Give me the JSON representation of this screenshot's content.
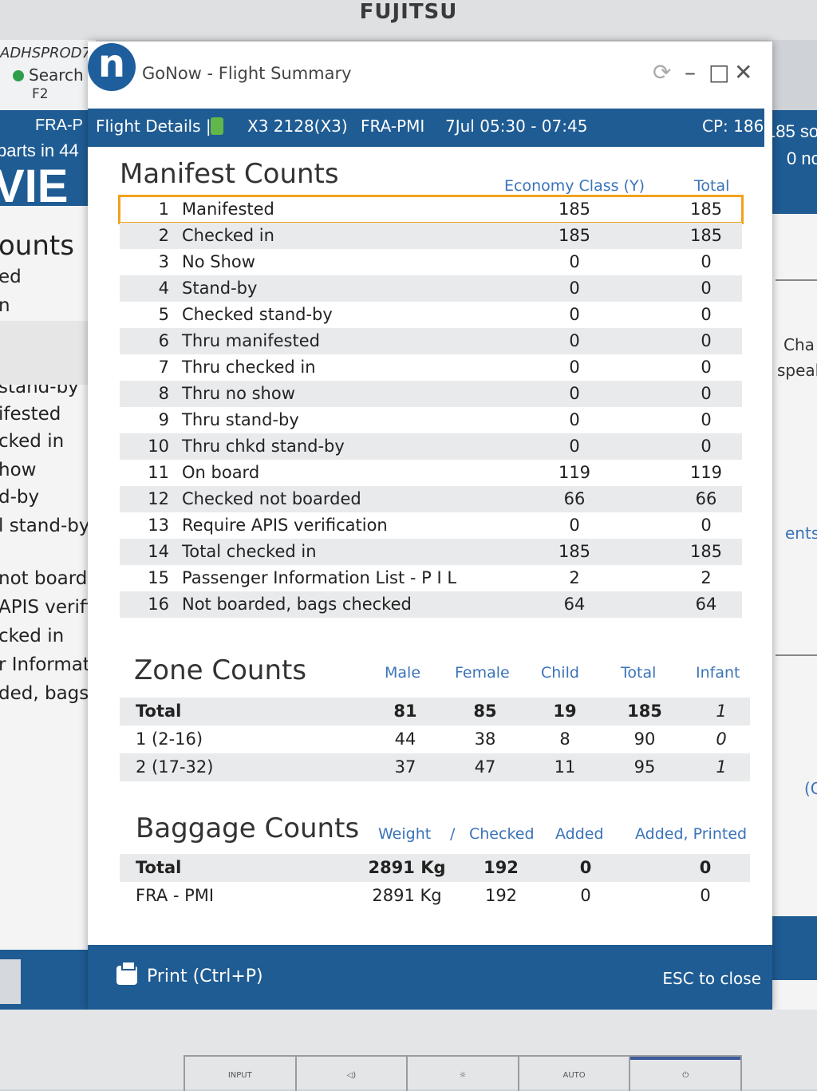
{
  "monitor": {
    "brand": "FUJITSU",
    "buttons": [
      "INPUT",
      "◁)",
      "☼",
      "AUTO",
      "⏻"
    ]
  },
  "background_left": {
    "host": "ADHSPROD7",
    "search": "Search",
    "key": "F2",
    "route": "FRA-P",
    "departs": "parts in 44",
    "big": "VIE",
    "heading": "ounts",
    "items": [
      "ed",
      "n",
      "stand-by",
      "ifested",
      "cked in",
      "how",
      "d-by",
      "l stand-by",
      "not boarde",
      "APIS verific",
      "cked in",
      "r Informat",
      "ded, bags c"
    ]
  },
  "background_right": {
    "line1": "185 so",
    "line2": "0 no",
    "txt1": "Cha",
    "txt2": "speal",
    "txt3": "ents",
    "txt4": "(C"
  },
  "window": {
    "logo": "n",
    "title": "GoNow - Flight Summary",
    "controls": {
      "refresh": "⟳",
      "minimize": "–",
      "maximize": "□",
      "close": "✕"
    }
  },
  "header": {
    "section": "Flight Details |",
    "flight": "X3 2128(X3)",
    "route": "FRA-PMI",
    "time": "7Jul 05:30 - 07:45",
    "cp": "CP: 186"
  },
  "manifest": {
    "title": "Manifest Counts",
    "columns": [
      "Economy Class (Y)",
      "Total"
    ],
    "rows": [
      {
        "n": "1",
        "label": "Manifested",
        "y": "185",
        "total": "185"
      },
      {
        "n": "2",
        "label": "Checked in",
        "y": "185",
        "total": "185"
      },
      {
        "n": "3",
        "label": "No Show",
        "y": "0",
        "total": "0"
      },
      {
        "n": "4",
        "label": "Stand-by",
        "y": "0",
        "total": "0"
      },
      {
        "n": "5",
        "label": "Checked stand-by",
        "y": "0",
        "total": "0"
      },
      {
        "n": "6",
        "label": "Thru manifested",
        "y": "0",
        "total": "0"
      },
      {
        "n": "7",
        "label": "Thru checked in",
        "y": "0",
        "total": "0"
      },
      {
        "n": "8",
        "label": "Thru no show",
        "y": "0",
        "total": "0"
      },
      {
        "n": "9",
        "label": "Thru stand-by",
        "y": "0",
        "total": "0"
      },
      {
        "n": "10",
        "label": "Thru chkd stand-by",
        "y": "0",
        "total": "0"
      },
      {
        "n": "11",
        "label": "On board",
        "y": "119",
        "total": "119"
      },
      {
        "n": "12",
        "label": "Checked not boarded",
        "y": "66",
        "total": "66"
      },
      {
        "n": "13",
        "label": "Require APIS verification",
        "y": "0",
        "total": "0"
      },
      {
        "n": "14",
        "label": "Total checked in",
        "y": "185",
        "total": "185"
      },
      {
        "n": "15",
        "label": "Passenger Information List - P I L",
        "y": "2",
        "total": "2"
      },
      {
        "n": "16",
        "label": "Not boarded, bags checked",
        "y": "64",
        "total": "64"
      }
    ]
  },
  "zone": {
    "title": "Zone Counts",
    "columns": [
      "Male",
      "Female",
      "Child",
      "Total",
      "Infant"
    ],
    "rows": [
      {
        "label": "Total",
        "male": "81",
        "female": "85",
        "child": "19",
        "total": "185",
        "infant": "1"
      },
      {
        "label": "1 (2-16)",
        "male": "44",
        "female": "38",
        "child": "8",
        "total": "90",
        "infant": "0"
      },
      {
        "label": "2 (17-32)",
        "male": "37",
        "female": "47",
        "child": "11",
        "total": "95",
        "infant": "1"
      }
    ]
  },
  "baggage": {
    "title": "Baggage Counts",
    "columns": [
      "Weight",
      "/",
      "Checked",
      "Added",
      "Added, Printed"
    ],
    "rows": [
      {
        "label": "Total",
        "weight": "2891 Kg",
        "checked": "192",
        "added": "0",
        "printed": "0"
      },
      {
        "label": "FRA - PMI",
        "weight": "2891 Kg",
        "checked": "192",
        "added": "0",
        "printed": "0"
      }
    ]
  },
  "footer": {
    "print": "Print (Ctrl+P)",
    "esc": "ESC to close"
  },
  "colors": {
    "accent": "#1f5c93",
    "highlight": "#f0a21c",
    "column_header": "#3a73b8"
  }
}
